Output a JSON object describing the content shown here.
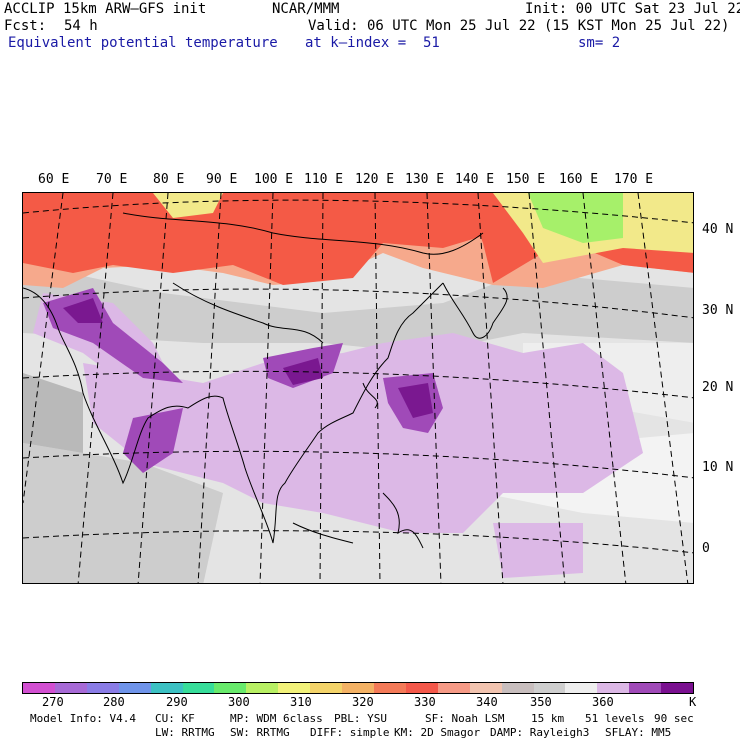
{
  "header": {
    "model": "ACCLIP 15km ARW–GFS init",
    "org": "NCAR/MMM",
    "init": "Init: 00 UTC Sat 23 Jul 22",
    "fcst_label": "Fcst:",
    "fcst_value": "54 h",
    "valid": "Valid: 06 UTC Mon 25 Jul 22 (15 KST Mon 25 Jul 22)",
    "field": "Equivalent potential temperature",
    "level": "at k–index =  51",
    "smooth": "sm= 2"
  },
  "map": {
    "lon_labels": [
      "60 E",
      "70 E",
      "80 E",
      "90 E",
      "100 E",
      "110 E",
      "120 E",
      "130 E",
      "140 E",
      "150 E",
      "160 E",
      "170 E"
    ],
    "lat_labels": [
      "40 N",
      "30 N",
      "20 N",
      "10 N",
      "0"
    ],
    "colors": {
      "warm_red": "#f45a46",
      "salmon": "#f6a98c",
      "green": "#a6f06a",
      "yellow": "#f2e98a",
      "gray_dark": "#b9b9b9",
      "gray_mid": "#cdcdcd",
      "gray_light": "#e4e4e4",
      "white": "#f6f6f6",
      "lilac": "#dcb8e6",
      "purple": "#a04ab8",
      "dark_purple": "#7a1890"
    }
  },
  "colorbar": {
    "colors": [
      "#d24fd1",
      "#a76ad6",
      "#8a7ce6",
      "#6f94ea",
      "#3cc1c3",
      "#37dd9a",
      "#68ea6c",
      "#b8f064",
      "#f2f27a",
      "#f4d46a",
      "#f4b265",
      "#f47a58",
      "#f4584a",
      "#f69a86",
      "#f2c4b0",
      "#c8bebe",
      "#cfcfcf",
      "#eeeeee",
      "#dcb8e6",
      "#a04ab8",
      "#7a1090"
    ],
    "labels": [
      "270",
      "280",
      "290",
      "300",
      "310",
      "320",
      "330",
      "340",
      "350",
      "360",
      "K"
    ]
  },
  "footer": {
    "line1": [
      "Model Info: V4.4",
      "CU: KF",
      "MP: WDM 6class",
      "PBL: YSU",
      "SF: Noah LSM",
      "15 km",
      "51 levels",
      "90 sec"
    ],
    "line2": [
      "LW: RRTMG",
      "SW: RRTMG",
      "DIFF: simple",
      "KM: 2D Smagor",
      "DAMP: Rayleigh3",
      "SFLAY: MM5"
    ]
  }
}
